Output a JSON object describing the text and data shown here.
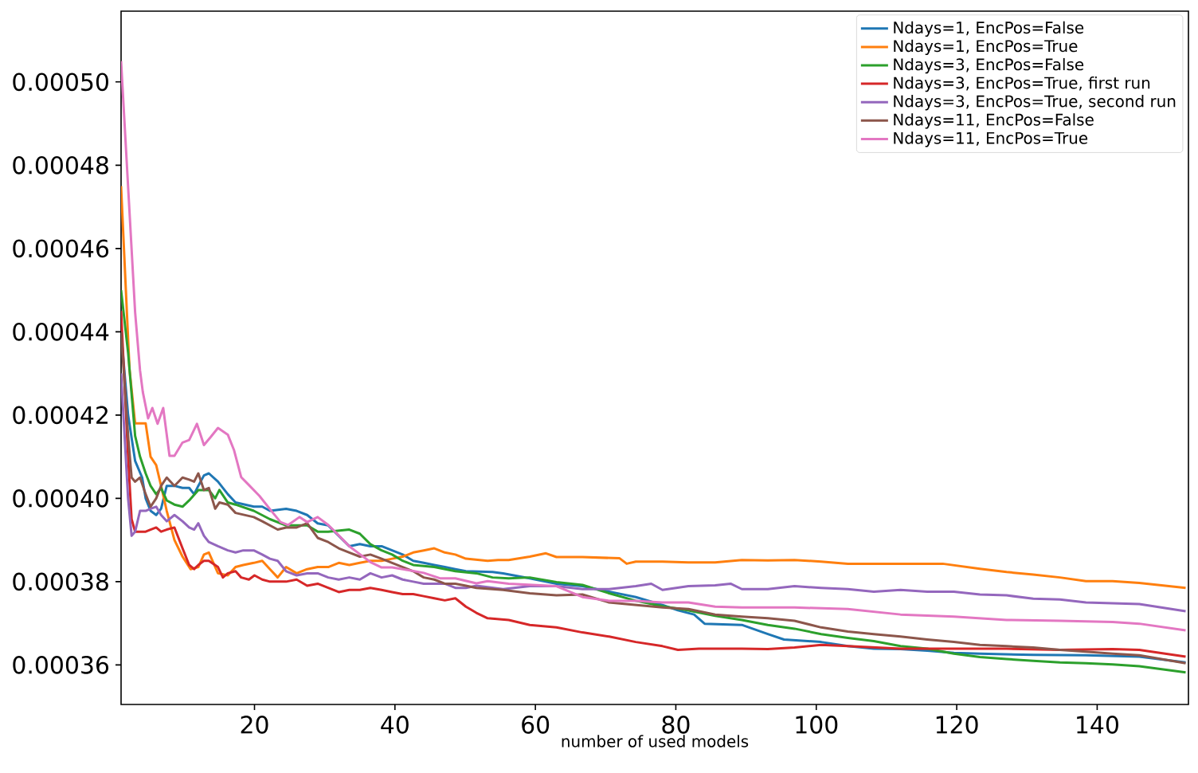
{
  "chart_data": {
    "type": "line",
    "xlabel": "number of used models",
    "xlim": [
      1,
      153
    ],
    "ylim": [
      0.0003505,
      0.000517
    ],
    "xticks": [
      20,
      40,
      60,
      80,
      100,
      120,
      140
    ],
    "yticks": [
      {
        "value": 0.00036,
        "label": "0.00036"
      },
      {
        "value": 0.00038,
        "label": "0.00038"
      },
      {
        "value": 0.0004,
        "label": "0.00040"
      },
      {
        "value": 0.00042,
        "label": "0.00042"
      },
      {
        "value": 0.00044,
        "label": "0.00044"
      },
      {
        "value": 0.00046,
        "label": "0.00046"
      },
      {
        "value": 0.00048,
        "label": "0.00048"
      },
      {
        "value": 0.0005,
        "label": "0.00050"
      }
    ],
    "legend": "top right",
    "marker": "none",
    "line_style": "solid",
    "series": [
      {
        "name": "Ndays=1, EncPos=False",
        "color": "#1f77b4",
        "x": [
          1,
          2,
          3,
          4,
          4.5,
          5.2,
          6,
          6.7,
          7.5,
          8.6,
          9.75,
          10.7,
          11.4,
          12,
          12.8,
          13.5,
          14.8,
          16.2,
          17.3,
          19.9,
          21.1,
          22.2,
          24.5,
          26,
          27.5,
          29,
          30.5,
          32,
          33.5,
          35,
          36.5,
          38.1,
          39.6,
          41.1,
          42.6,
          44.1,
          45.6,
          47.1,
          48.6,
          50.1,
          53.9,
          55.4,
          59.2,
          63,
          66.7,
          70.5,
          74.3,
          78.1,
          80.3,
          82.6,
          84.1,
          89.4,
          93.1,
          95.4,
          100.7,
          104.5,
          108.2,
          112,
          115.8,
          119.6,
          123.3,
          130.9,
          138.4,
          146,
          152.6
        ],
        "values": [
          0.00044,
          0.00042,
          0.000409,
          0.000405,
          0.0004,
          0.000397,
          0.000396,
          0.0003975,
          0.000403,
          0.000403,
          0.0004025,
          0.0004025,
          0.000401,
          0.000403,
          0.0004055,
          0.000406,
          0.000404,
          0.000401,
          0.000399,
          0.000398,
          0.000398,
          0.000397,
          0.0003975,
          0.000397,
          0.000396,
          0.000394,
          0.0003935,
          0.000391,
          0.0003885,
          0.000389,
          0.0003885,
          0.0003885,
          0.0003875,
          0.0003865,
          0.000385,
          0.0003845,
          0.000384,
          0.0003835,
          0.000383,
          0.0003825,
          0.0003823,
          0.000382,
          0.0003808,
          0.0003795,
          0.0003789,
          0.0003776,
          0.0003763,
          0.0003744,
          0.0003731,
          0.0003721,
          0.0003699,
          0.0003696,
          0.0003674,
          0.0003661,
          0.0003655,
          0.0003645,
          0.0003639,
          0.0003638,
          0.0003634,
          0.0003629,
          0.0003627,
          0.0003624,
          0.0003623,
          0.000362,
          0.0003606
        ]
      },
      {
        "name": "Ndays=1, EncPos=True",
        "color": "#ff7f0e",
        "x": [
          1,
          2.2,
          3,
          3.7,
          4.5,
          5.2,
          6,
          6.7,
          7.5,
          8.6,
          9.75,
          10.9,
          12,
          12.8,
          13.5,
          14.8,
          16.2,
          17.3,
          18.4,
          19.9,
          21.1,
          22.2,
          23.3,
          24.5,
          26,
          27.5,
          29,
          30.5,
          32,
          33.5,
          35,
          36.5,
          38.1,
          39.6,
          41.1,
          42.6,
          44.1,
          45.6,
          47.1,
          48.6,
          50.1,
          53.2,
          54.7,
          56.2,
          59.2,
          61.5,
          63,
          66.7,
          72,
          73,
          74.3,
          78.1,
          81.8,
          85.6,
          89.4,
          93.1,
          96.9,
          100.7,
          104.5,
          108.2,
          112,
          118,
          123.3,
          127.1,
          130.9,
          134.7,
          138.4,
          142.2,
          146,
          152.6
        ],
        "values": [
          0.000475,
          0.000431,
          0.000418,
          0.000418,
          0.000418,
          0.00041,
          0.000408,
          0.000403,
          0.000397,
          0.00039,
          0.000386,
          0.000383,
          0.0003835,
          0.0003865,
          0.000387,
          0.000382,
          0.0003815,
          0.0003835,
          0.000384,
          0.0003845,
          0.000385,
          0.000383,
          0.000381,
          0.0003835,
          0.000382,
          0.000383,
          0.0003835,
          0.0003835,
          0.0003845,
          0.000384,
          0.0003845,
          0.000385,
          0.000385,
          0.0003855,
          0.000386,
          0.000387,
          0.0003875,
          0.000388,
          0.000387,
          0.0003865,
          0.0003855,
          0.000385,
          0.0003852,
          0.0003852,
          0.000386,
          0.0003868,
          0.0003859,
          0.0003859,
          0.0003856,
          0.0003843,
          0.0003848,
          0.0003848,
          0.0003846,
          0.0003846,
          0.0003852,
          0.0003851,
          0.0003852,
          0.0003848,
          0.0003843,
          0.0003843,
          0.0003843,
          0.0003843,
          0.0003831,
          0.0003823,
          0.0003817,
          0.000381,
          0.0003801,
          0.0003801,
          0.0003797,
          0.0003785
        ]
      },
      {
        "name": "Ndays=3, EncPos=False",
        "color": "#2ca02c",
        "x": [
          1,
          2,
          3,
          3.7,
          4.5,
          5.2,
          6,
          6.7,
          7.5,
          8.6,
          9.75,
          10.7,
          12,
          13.5,
          14.4,
          15,
          16.2,
          17.3,
          19.9,
          22.2,
          24.5,
          26,
          27.5,
          29,
          30.5,
          33.5,
          35,
          36.5,
          38.1,
          39.6,
          41.1,
          42.6,
          45.6,
          48.6,
          51.6,
          53.9,
          56.2,
          59.2,
          63,
          66.7,
          70.5,
          74.3,
          78.1,
          81.8,
          85.6,
          89.4,
          93.1,
          96.9,
          100.7,
          104.5,
          108.2,
          112,
          115.8,
          119.6,
          123.3,
          127.1,
          130.9,
          134.7,
          138.4,
          142.2,
          146,
          152.6
        ],
        "values": [
          0.00045,
          0.000435,
          0.000415,
          0.00041,
          0.000406,
          0.000403,
          0.000401,
          0.0004025,
          0.0003995,
          0.0003985,
          0.000398,
          0.0003995,
          0.000402,
          0.000402,
          0.0004,
          0.000402,
          0.000399,
          0.0003985,
          0.000397,
          0.000395,
          0.0003935,
          0.0003935,
          0.0003935,
          0.000392,
          0.000392,
          0.0003925,
          0.0003915,
          0.000389,
          0.0003875,
          0.0003865,
          0.000385,
          0.000384,
          0.0003835,
          0.0003825,
          0.000382,
          0.000381,
          0.0003808,
          0.000381,
          0.0003799,
          0.0003792,
          0.0003772,
          0.0003754,
          0.0003741,
          0.0003731,
          0.0003718,
          0.0003708,
          0.0003696,
          0.0003687,
          0.0003674,
          0.0003665,
          0.0003657,
          0.0003645,
          0.0003639,
          0.0003627,
          0.0003619,
          0.0003614,
          0.000361,
          0.0003606,
          0.0003604,
          0.0003601,
          0.0003597,
          0.0003582
        ]
      },
      {
        "name": "Ndays=3, EncPos=True, first run",
        "color": "#d62728",
        "x": [
          1,
          2,
          2.5,
          3,
          3.7,
          4.5,
          5.2,
          6,
          6.7,
          7.5,
          8.6,
          9.75,
          10.7,
          11.4,
          12,
          12.8,
          13.5,
          14.8,
          15.5,
          16.2,
          17.3,
          18.1,
          19.2,
          20,
          21.1,
          22.2,
          24.5,
          26,
          27.5,
          29,
          30.5,
          32,
          33.5,
          35,
          36.5,
          38.1,
          39.6,
          41.1,
          42.6,
          44.1,
          45.6,
          47.1,
          48.6,
          50.1,
          51.6,
          53.2,
          56.2,
          59.2,
          63,
          66.7,
          70.5,
          74.3,
          78.1,
          80.3,
          83.3,
          89.4,
          93.1,
          96.9,
          100.7,
          104.5,
          112,
          119.6,
          127.1,
          134.7,
          142.2,
          146,
          152.6
        ],
        "values": [
          0.000445,
          0.00041,
          0.000395,
          0.000392,
          0.000392,
          0.000392,
          0.0003925,
          0.000393,
          0.000392,
          0.0003925,
          0.000393,
          0.000388,
          0.000384,
          0.000383,
          0.000384,
          0.000385,
          0.000385,
          0.0003835,
          0.000381,
          0.000382,
          0.0003825,
          0.000381,
          0.0003805,
          0.0003815,
          0.0003805,
          0.00038,
          0.00038,
          0.0003805,
          0.000379,
          0.0003795,
          0.0003785,
          0.0003775,
          0.000378,
          0.000378,
          0.0003785,
          0.000378,
          0.0003775,
          0.000377,
          0.000377,
          0.0003765,
          0.000376,
          0.0003755,
          0.000376,
          0.000374,
          0.0003725,
          0.0003712,
          0.0003708,
          0.0003696,
          0.000369,
          0.0003678,
          0.0003668,
          0.0003655,
          0.0003645,
          0.0003636,
          0.0003639,
          0.0003639,
          0.0003638,
          0.0003642,
          0.0003648,
          0.0003645,
          0.0003639,
          0.0003639,
          0.0003639,
          0.0003636,
          0.0003638,
          0.0003636,
          0.000362
        ]
      },
      {
        "name": "Ndays=3, EncPos=True, second run",
        "color": "#9467bd",
        "x": [
          1,
          2,
          2.5,
          3,
          3.7,
          4.5,
          5.2,
          6,
          6.7,
          7.5,
          8.6,
          9.75,
          10.7,
          11.4,
          12,
          12.8,
          13.5,
          14.8,
          16.2,
          17.3,
          18.4,
          19.9,
          21.1,
          22.2,
          23.3,
          24.5,
          26,
          27.5,
          29,
          30.5,
          32,
          33.5,
          35,
          36.5,
          38.1,
          39.6,
          41.1,
          42.6,
          44.1,
          45.6,
          47.1,
          48.6,
          50.1,
          51.6,
          55.4,
          59.2,
          63,
          66.7,
          70.5,
          74.3,
          76.5,
          78.1,
          81.8,
          85.6,
          87.8,
          89.4,
          93.1,
          96.9,
          100.7,
          104.5,
          108.2,
          112,
          115.8,
          119.6,
          123.3,
          127.1,
          130.9,
          134.7,
          138.4,
          142.2,
          146,
          152.6
        ],
        "values": [
          0.00043,
          0.0004,
          0.000391,
          0.000392,
          0.000397,
          0.000397,
          0.0003975,
          0.000398,
          0.000396,
          0.0003945,
          0.000396,
          0.0003945,
          0.000393,
          0.0003925,
          0.000394,
          0.000391,
          0.0003895,
          0.0003885,
          0.0003875,
          0.000387,
          0.0003875,
          0.0003875,
          0.0003865,
          0.0003855,
          0.000385,
          0.0003825,
          0.0003815,
          0.000382,
          0.000382,
          0.000381,
          0.0003805,
          0.000381,
          0.0003805,
          0.000382,
          0.000381,
          0.0003815,
          0.0003805,
          0.00038,
          0.0003795,
          0.0003795,
          0.0003795,
          0.0003785,
          0.0003785,
          0.000379,
          0.0003782,
          0.0003789,
          0.0003789,
          0.0003782,
          0.0003782,
          0.0003789,
          0.0003795,
          0.000378,
          0.0003789,
          0.0003791,
          0.0003795,
          0.0003782,
          0.0003782,
          0.0003789,
          0.0003785,
          0.0003782,
          0.0003776,
          0.000378,
          0.0003776,
          0.0003776,
          0.0003769,
          0.0003767,
          0.0003759,
          0.0003757,
          0.000375,
          0.0003748,
          0.0003746,
          0.0003729
        ]
      },
      {
        "name": "Ndays=11, EncPos=False",
        "color": "#8c564b",
        "x": [
          1,
          2,
          2.5,
          3,
          3.7,
          4.5,
          5.2,
          6,
          6.7,
          7.5,
          8.6,
          9.75,
          10.7,
          11.4,
          12,
          12.8,
          13.5,
          14.4,
          15,
          16.2,
          17.3,
          19.9,
          21.1,
          22.2,
          23.3,
          24.5,
          26,
          27.5,
          29,
          30.5,
          32,
          33.5,
          35,
          36.5,
          38.1,
          39.6,
          41.1,
          42.6,
          44.1,
          45.6,
          47.1,
          48.6,
          50.1,
          51.6,
          55.4,
          59.2,
          63,
          66.7,
          70.5,
          74.3,
          78.1,
          81.8,
          85.6,
          89.4,
          93.1,
          96.9,
          100.7,
          104.5,
          108.2,
          112,
          115.8,
          119.6,
          123.3,
          127.1,
          130.9,
          134.7,
          138.4,
          142.2,
          146,
          152.6
        ],
        "values": [
          0.00044,
          0.000415,
          0.000405,
          0.000404,
          0.000405,
          0.000401,
          0.000398,
          0.0004,
          0.000403,
          0.000405,
          0.000403,
          0.000405,
          0.0004045,
          0.000404,
          0.000406,
          0.000402,
          0.0004025,
          0.0003975,
          0.000399,
          0.0003985,
          0.0003965,
          0.0003955,
          0.0003945,
          0.0003935,
          0.0003925,
          0.000393,
          0.000393,
          0.000394,
          0.0003905,
          0.0003895,
          0.000388,
          0.000387,
          0.000386,
          0.0003865,
          0.0003855,
          0.0003845,
          0.0003835,
          0.0003825,
          0.000381,
          0.0003805,
          0.0003795,
          0.0003795,
          0.000379,
          0.0003785,
          0.000378,
          0.0003772,
          0.0003767,
          0.0003769,
          0.000375,
          0.0003744,
          0.0003738,
          0.0003734,
          0.0003721,
          0.0003716,
          0.0003712,
          0.0003706,
          0.000369,
          0.000368,
          0.0003674,
          0.0003668,
          0.0003661,
          0.0003655,
          0.0003648,
          0.0003645,
          0.0003642,
          0.0003636,
          0.0003632,
          0.0003627,
          0.0003623,
          0.0003604
        ]
      },
      {
        "name": "Ndays=11, EncPos=True",
        "color": "#e377c2",
        "x": [
          1,
          3,
          3.7,
          4.1,
          4.85,
          5.45,
          6.2,
          7,
          7.9,
          8.6,
          9.75,
          10.7,
          11.8,
          12.8,
          13.75,
          14.8,
          16.2,
          17.1,
          18.1,
          19.2,
          20.7,
          22.2,
          23.7,
          24.8,
          26.4,
          27.5,
          29,
          30.5,
          32,
          33.5,
          35,
          36.5,
          38.1,
          39.6,
          41.8,
          44.1,
          46.4,
          48.6,
          51.6,
          53.2,
          56.2,
          63,
          66.7,
          70.5,
          74.3,
          78.1,
          81.8,
          85.6,
          89.4,
          96.9,
          104.5,
          112,
          119.6,
          127.1,
          134.7,
          142.2,
          146,
          152.6
        ],
        "values": [
          0.000505,
          0.0004447,
          0.0004307,
          0.0004255,
          0.0004192,
          0.0004217,
          0.0004179,
          0.0004217,
          0.0004102,
          0.0004102,
          0.0004134,
          0.000414,
          0.0004179,
          0.0004128,
          0.0004147,
          0.0004169,
          0.0004153,
          0.0004115,
          0.0004051,
          0.0004032,
          0.0004006,
          0.0003974,
          0.0003943,
          0.0003936,
          0.0003955,
          0.0003943,
          0.0003955,
          0.0003936,
          0.0003911,
          0.0003885,
          0.0003866,
          0.0003847,
          0.0003834,
          0.0003834,
          0.0003828,
          0.0003821,
          0.0003808,
          0.0003808,
          0.0003796,
          0.0003801,
          0.0003795,
          0.0003789,
          0.0003763,
          0.0003754,
          0.0003754,
          0.000375,
          0.000375,
          0.000374,
          0.0003738,
          0.0003738,
          0.0003734,
          0.0003721,
          0.0003716,
          0.0003708,
          0.0003706,
          0.0003703,
          0.0003699,
          0.0003683
        ]
      }
    ]
  }
}
